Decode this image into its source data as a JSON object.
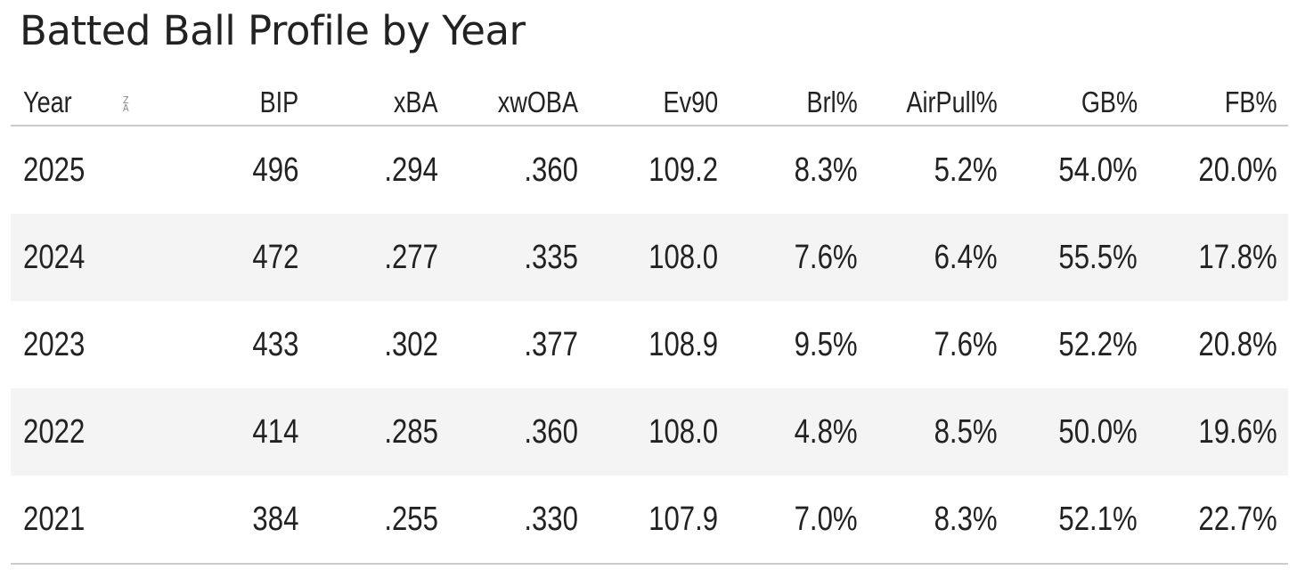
{
  "chart_data": {
    "type": "table",
    "title": "Batted Ball Profile by Year",
    "columns": [
      "Year",
      "BIP",
      "xBA",
      "xwOBA",
      "Ev90",
      "Brl%",
      "AirPull%",
      "GB%",
      "FB%"
    ],
    "sort": {
      "column": "Year",
      "icon": "sort-z-a-icon",
      "icon_top": "Z",
      "icon_bottom": "A"
    },
    "rows": [
      [
        "2025",
        "496",
        ".294",
        ".360",
        "109.2",
        "8.3%",
        "5.2%",
        "54.0%",
        "20.0%"
      ],
      [
        "2024",
        "472",
        ".277",
        ".335",
        "108.0",
        "7.6%",
        "6.4%",
        "55.5%",
        "17.8%"
      ],
      [
        "2023",
        "433",
        ".302",
        ".377",
        "108.9",
        "9.5%",
        "7.6%",
        "52.2%",
        "20.8%"
      ],
      [
        "2022",
        "414",
        ".285",
        ".360",
        "108.0",
        "4.8%",
        "8.5%",
        "50.0%",
        "19.6%"
      ],
      [
        "2021",
        "384",
        ".255",
        ".330",
        "107.9",
        "7.0%",
        "8.3%",
        "52.1%",
        "22.7%"
      ]
    ],
    "colors": {
      "text": "#222222",
      "stripe": "#f4f4f4",
      "rule": "#cccccc"
    }
  }
}
